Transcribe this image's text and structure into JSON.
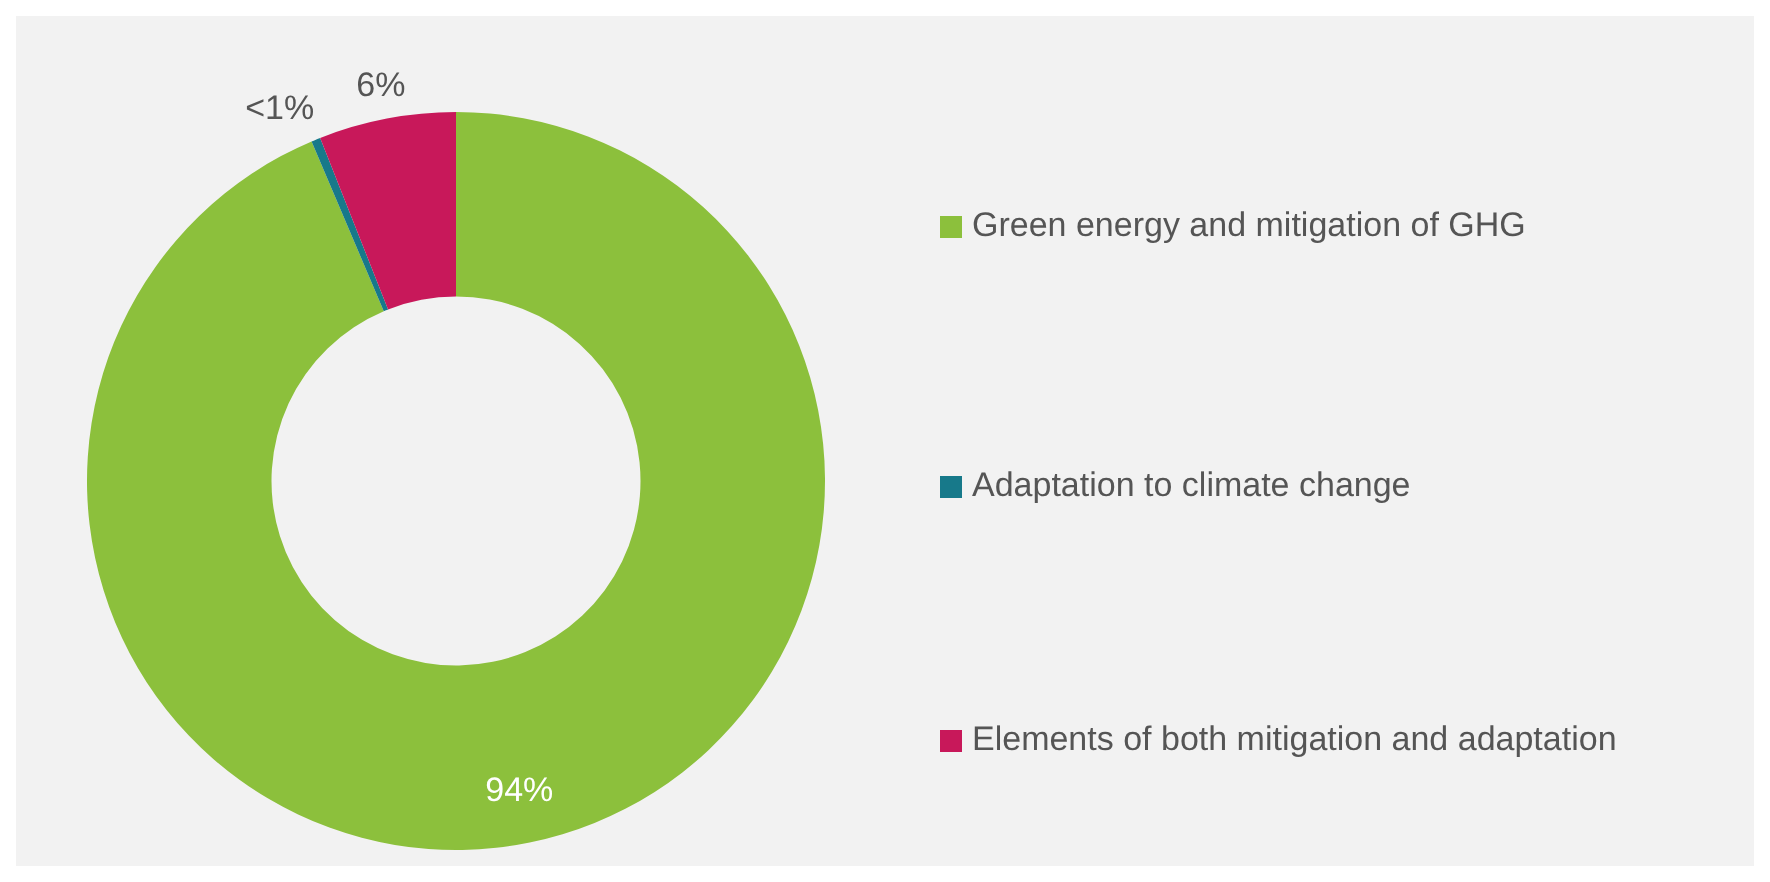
{
  "chart_data": {
    "type": "donut",
    "categories": [
      "Green energy and mitigation of GHG",
      "Adaptation to climate change",
      "Elements of both mitigation and adaptation"
    ],
    "values": [
      93.6,
      0.4,
      6.0
    ],
    "colors": [
      "#8cc03c",
      "#17798a",
      "#c8185a"
    ],
    "value_labels": [
      "94%",
      "<1%",
      "6%"
    ],
    "legend": "right"
  }
}
